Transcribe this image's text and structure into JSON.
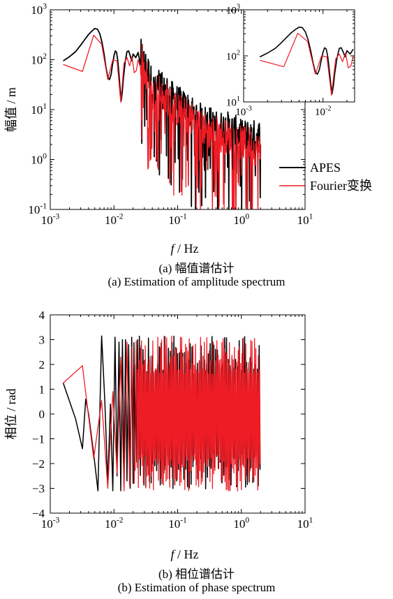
{
  "chart_data": [
    {
      "type": "line",
      "xscale": "log",
      "yscale": "log",
      "xlim": [
        0.001,
        10
      ],
      "ylim": [
        0.1,
        1000
      ],
      "xlabel": {
        "italic": "f",
        "rest": " / Hz"
      },
      "ylabel": "幅值 / m",
      "xticks": [
        {
          "base": "10",
          "exp": "-3",
          "value": 0.001
        },
        {
          "base": "10",
          "exp": "-2",
          "value": 0.01
        },
        {
          "base": "10",
          "exp": "-1",
          "value": 0.1
        },
        {
          "base": "10",
          "exp": "0",
          "value": 1
        },
        {
          "base": "10",
          "exp": "1",
          "value": 10
        }
      ],
      "yticks": [
        {
          "base": "10",
          "exp": "-1",
          "value": 0.1
        },
        {
          "base": "10",
          "exp": "0",
          "value": 1
        },
        {
          "base": "10",
          "exp": "1",
          "value": 10
        },
        {
          "base": "10",
          "exp": "2",
          "value": 100
        },
        {
          "base": "10",
          "exp": "3",
          "value": 1000
        }
      ],
      "legend": {
        "placement": "right",
        "entries": [
          "APES",
          "Fourier变换"
        ]
      },
      "series": [
        {
          "name": "APES",
          "color": "#000000",
          "x": [
            0.0016,
            0.002,
            0.0025,
            0.003,
            0.0035,
            0.004,
            0.0045,
            0.005,
            0.0055,
            0.006,
            0.0065,
            0.007,
            0.0075,
            0.008,
            0.0085,
            0.009,
            0.0095,
            0.01,
            0.0105,
            0.011,
            0.0115,
            0.012,
            0.0125,
            0.013,
            0.0135,
            0.014,
            0.015,
            0.016,
            0.017,
            0.018,
            0.019,
            0.02,
            0.022,
            0.024,
            0.026,
            0.028,
            0.03,
            0.033,
            0.036,
            0.04,
            0.045,
            0.05,
            0.06,
            0.07,
            0.08,
            0.1,
            0.12,
            0.15,
            0.2,
            0.25,
            0.3,
            0.4,
            0.5,
            0.6,
            0.8,
            1.0,
            1.3,
            1.6,
            2.0
          ],
          "y": [
            95,
            115,
            145,
            195,
            255,
            320,
            375,
            420,
            410,
            330,
            220,
            130,
            70,
            45,
            40,
            50,
            80,
            120,
            150,
            140,
            95,
            50,
            25,
            15,
            22,
            40,
            90,
            145,
            150,
            120,
            95,
            130,
            110,
            140,
            80,
            85,
            55,
            45,
            35,
            20,
            15,
            25,
            15,
            18,
            12,
            10,
            8,
            7,
            5,
            4,
            4,
            3,
            3,
            3,
            2.5,
            2,
            2,
            2,
            2
          ]
        },
        {
          "name": "Fourier变换",
          "color": "#ee1c25",
          "x": [
            0.0016,
            0.0032,
            0.0048,
            0.0064,
            0.008,
            0.0096,
            0.0112,
            0.0128,
            0.0144,
            0.016,
            0.0176,
            0.0192,
            0.0208,
            0.0224,
            0.024,
            0.026,
            0.028,
            0.03,
            0.033,
            0.036,
            0.04,
            0.045,
            0.05,
            0.06,
            0.07,
            0.08,
            0.1,
            0.12,
            0.15,
            0.2,
            0.25,
            0.3,
            0.4,
            0.5,
            0.6,
            0.8,
            1.0,
            1.3,
            1.6,
            2.0
          ],
          "y": [
            80,
            58,
            310,
            205,
            40,
            100,
            95,
            14,
            85,
            110,
            75,
            115,
            55,
            60,
            100,
            70,
            90,
            40,
            30,
            25,
            12,
            15,
            20,
            10,
            12,
            8,
            7,
            6,
            5,
            4,
            3,
            2.5,
            2.5,
            2,
            2,
            1.8,
            1.5,
            1.5,
            1.2,
            1.0
          ]
        }
      ],
      "inset": {
        "xlim": [
          0.001,
          0.025
        ],
        "ylim": [
          10,
          1000
        ],
        "xticks": [
          {
            "base": "10",
            "exp": "-3",
            "value": 0.001
          },
          {
            "base": "10",
            "exp": "-2",
            "value": 0.01
          }
        ],
        "yticks": [
          {
            "base": "10",
            "exp": "1",
            "value": 10
          },
          {
            "base": "10",
            "exp": "2",
            "value": 100
          },
          {
            "base": "10",
            "exp": "3",
            "value": 1000
          }
        ]
      }
    },
    {
      "type": "line",
      "xscale": "log",
      "yscale": "linear",
      "xlim": [
        0.001,
        10
      ],
      "ylim": [
        -4,
        4
      ],
      "xlabel": {
        "italic": "f",
        "rest": " / Hz"
      },
      "ylabel": "相位 / rad",
      "xticks": [
        {
          "base": "10",
          "exp": "-3",
          "value": 0.001
        },
        {
          "base": "10",
          "exp": "-2",
          "value": 0.01
        },
        {
          "base": "10",
          "exp": "-1",
          "value": 0.1
        },
        {
          "base": "10",
          "exp": "0",
          "value": 1
        },
        {
          "base": "10",
          "exp": "1",
          "value": 10
        }
      ],
      "yticks": [
        {
          "label": "−4",
          "value": -4
        },
        {
          "label": "−3",
          "value": -3
        },
        {
          "label": "−2",
          "value": -2
        },
        {
          "label": "−1",
          "value": -1
        },
        {
          "label": "0",
          "value": 0
        },
        {
          "label": "1",
          "value": 1
        },
        {
          "label": "2",
          "value": 2
        },
        {
          "label": "3",
          "value": 3
        },
        {
          "label": "4",
          "value": 4
        }
      ],
      "series": [
        {
          "name": "APES",
          "color": "#000000",
          "x": [
            0.0016,
            0.0025,
            0.0032,
            0.0036,
            0.004,
            0.0048,
            0.0056,
            0.0064,
            0.0072,
            0.008,
            0.0088,
            0.0096,
            0.0104,
            0.0112,
            0.012,
            0.0128,
            0.0136,
            0.0144,
            0.0152,
            0.016,
            0.017,
            0.018,
            0.019,
            0.02
          ],
          "y": [
            1.25,
            -0.2,
            -1.4,
            0.6,
            0.0,
            -1.6,
            -3.1,
            3.15,
            0.5,
            -2.8,
            0.4,
            -3.1,
            3.1,
            -2.5,
            2.9,
            -3.1,
            3.0,
            -2.9,
            3.0,
            -2.7,
            2.8,
            -3.0,
            3.1,
            -2.8
          ]
        },
        {
          "name": "Fourier变换",
          "color": "#ee1c25",
          "x": [
            0.0016,
            0.0032,
            0.0048,
            0.0064,
            0.008,
            0.0096,
            0.0112,
            0.0128,
            0.0144,
            0.016,
            0.0176,
            0.0192,
            0.0208,
            0.0224
          ],
          "y": [
            1.25,
            1.95,
            -1.8,
            0.55,
            -3.0,
            0.9,
            -2.4,
            2.3,
            -3.1,
            2.9,
            -2.9,
            2.7,
            -2.8,
            2.95
          ]
        }
      ]
    }
  ],
  "captions": {
    "a_cn": "(a)  幅值谱估计",
    "a_en": "(a)  Estimation of amplitude spectrum",
    "b_cn": "(b)  相位谱估计",
    "b_en": "(b)  Estimation of phase spectrum"
  }
}
